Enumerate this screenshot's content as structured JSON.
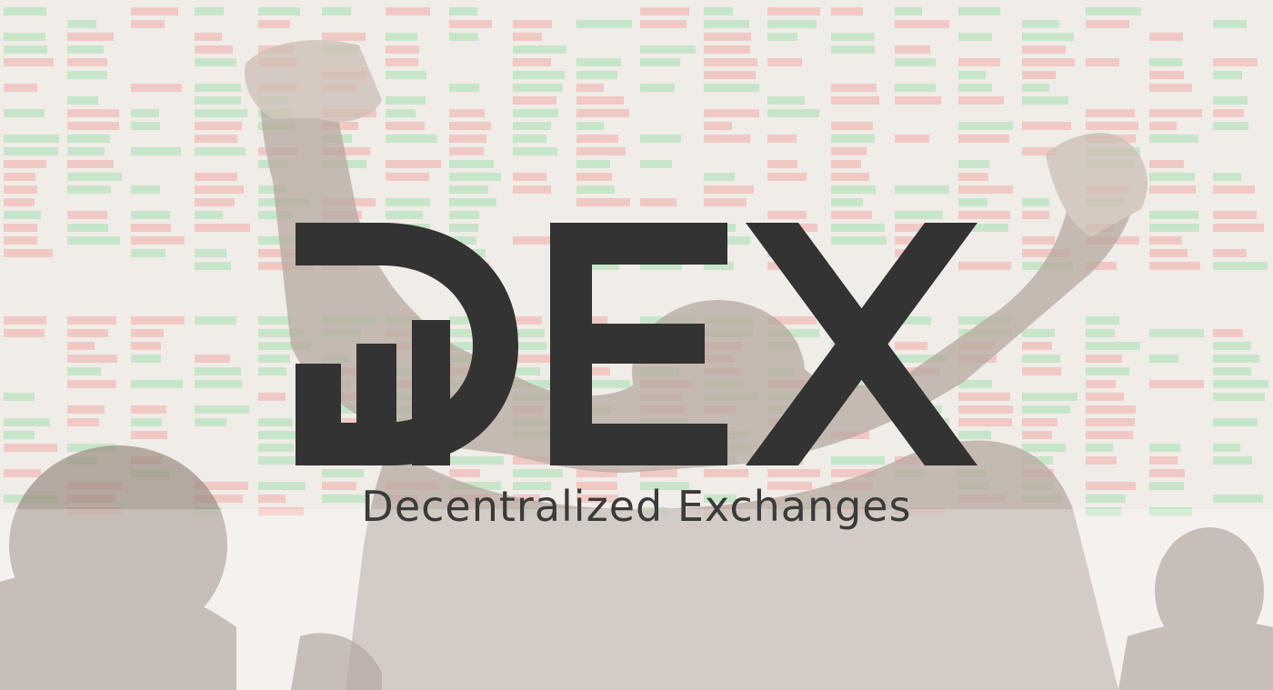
{
  "logo": {
    "wordmark": "DEX",
    "subtitle": "Decentralized Exchanges"
  },
  "colors": {
    "logo": "#333333",
    "board_green": "#9fd6a2",
    "board_red": "#e7a39b",
    "backdrop": "#e9e4df"
  },
  "background": {
    "scene": "trading floor with stock ticker board, trader raising both arms"
  }
}
